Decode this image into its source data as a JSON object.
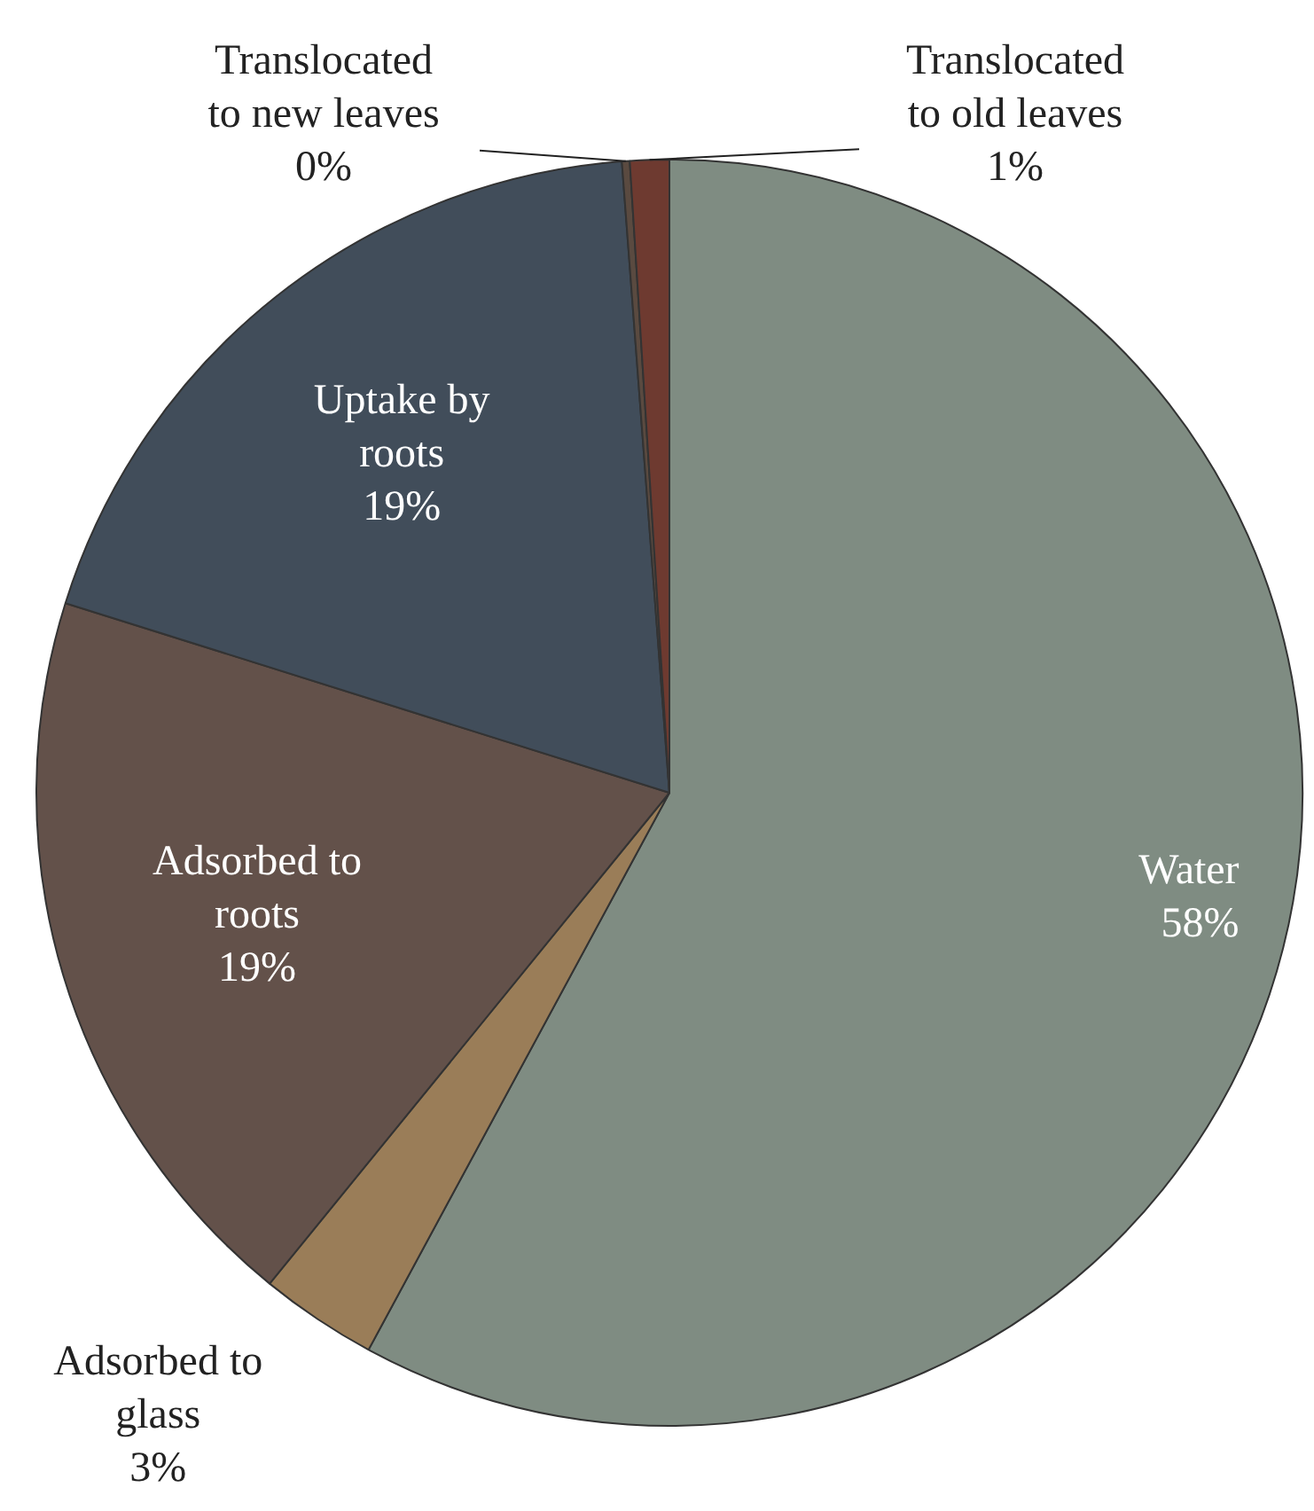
{
  "chart_data": {
    "type": "pie",
    "categories": [
      "Water",
      "Adsorbed to glass",
      "Adsorbed to roots",
      "Uptake by roots",
      "Translocated to new leaves",
      "Translocated to old leaves"
    ],
    "values": [
      58,
      3,
      19,
      19,
      0.2,
      1
    ],
    "value_labels": [
      "58%",
      "3%",
      "19%",
      "19%",
      "0%",
      "1%"
    ],
    "colors": [
      "#7f8c82",
      "#9a7d58",
      "#63514a",
      "#414d5a",
      "#5a4a40",
      "#6e3a30"
    ]
  }
}
